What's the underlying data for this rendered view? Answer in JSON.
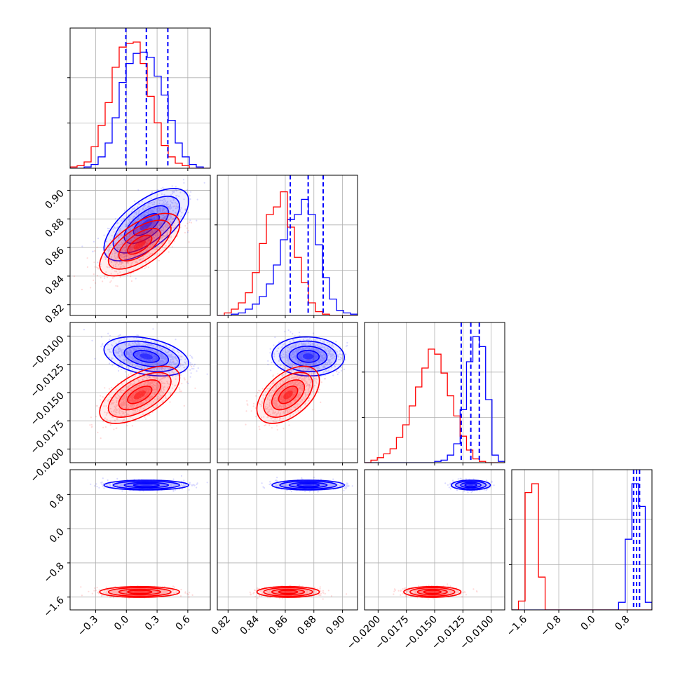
{
  "chart_data": {
    "type": "corner",
    "title": "",
    "grid": true,
    "parameters": [
      {
        "range": [
          -0.55,
          0.82
        ],
        "ticks": [
          -0.3,
          0.0,
          0.3,
          0.6
        ],
        "tick_labels": [
          "−0.3",
          "0.0",
          "0.3",
          "0.6"
        ]
      },
      {
        "range": [
          0.8125,
          0.9105
        ],
        "ticks": [
          0.82,
          0.84,
          0.86,
          0.88,
          0.9
        ],
        "tick_labels": [
          "0.82",
          "0.84",
          "0.86",
          "0.88",
          "0.90"
        ]
      },
      {
        "range": [
          -0.0212,
          -0.0088
        ],
        "ticks": [
          -0.02,
          -0.0175,
          -0.015,
          -0.0125,
          -0.01
        ],
        "tick_labels": [
          "−0.0200",
          "−0.0175",
          "−0.0150",
          "−0.0125",
          "−0.0100"
        ]
      },
      {
        "range": [
          -1.9,
          1.38
        ],
        "ticks": [
          -1.6,
          -0.8,
          0.0,
          0.8
        ],
        "tick_labels": [
          "−1.6",
          "−0.8",
          "0.0",
          "0.8"
        ]
      }
    ],
    "series": [
      {
        "color": "#0000ff",
        "means": [
          0.195,
          0.876,
          -0.0118,
          1.02
        ],
        "sds": [
          0.18,
          0.011,
          0.00075,
          0.05
        ],
        "corr": [
          [
            1,
            0.65,
            -0.35,
            0
          ],
          [
            0.65,
            1,
            -0.05,
            0
          ],
          [
            -0.35,
            -0.05,
            1,
            0
          ],
          [
            0,
            0,
            0,
            1
          ]
        ]
      },
      {
        "color": "#ff0000",
        "means": [
          0.13,
          0.862,
          -0.0152,
          -1.48
        ],
        "sds": [
          0.17,
          0.0095,
          0.0011,
          0.055
        ],
        "corr": [
          [
            1,
            0.65,
            0.6,
            0
          ],
          [
            0.65,
            1,
            0.5,
            0
          ],
          [
            0.6,
            0.5,
            1,
            0
          ],
          [
            0,
            0,
            0,
            1
          ]
        ]
      }
    ],
    "quantile_lines": {
      "color": "#0000ff",
      "values": [
        [
          -0.005,
          0.195,
          0.405
        ],
        [
          0.8635,
          0.876,
          0.8865
        ],
        [
          -0.01265,
          -0.0118,
          -0.01105
        ],
        [
          0.95,
          1.02,
          1.09
        ]
      ]
    },
    "histograms": [
      {
        "blue": [
          0,
          0,
          0.01,
          0.03,
          0.09,
          0.2,
          0.4,
          0.68,
          0.83,
          0.91,
          0.92,
          0.88,
          0.73,
          0.58,
          0.38,
          0.2,
          0.09,
          0.03,
          0.01,
          0
        ],
        "red": [
          0.01,
          0.02,
          0.05,
          0.17,
          0.34,
          0.52,
          0.8,
          0.96,
          0.99,
          1.0,
          0.83,
          0.57,
          0.36,
          0.18,
          0.09,
          0.04,
          0.02,
          0,
          0,
          0
        ]
      },
      {
        "blue": [
          0,
          0,
          0.01,
          0.02,
          0.05,
          0.09,
          0.15,
          0.25,
          0.4,
          0.6,
          0.76,
          0.8,
          0.92,
          0.8,
          0.56,
          0.3,
          0.13,
          0.04,
          0.02,
          0.01
        ],
        "red": [
          0,
          0.02,
          0.05,
          0.1,
          0.18,
          0.34,
          0.57,
          0.8,
          0.86,
          0.98,
          0.7,
          0.46,
          0.26,
          0.1,
          0.03,
          0.01,
          0,
          0,
          0,
          0
        ]
      },
      {
        "blue": [
          0,
          0,
          0,
          0,
          0,
          0,
          0,
          0,
          0,
          0,
          0,
          0.01,
          0.02,
          0.06,
          0.15,
          0.42,
          0.8,
          1.0,
          0.92,
          0.5,
          0.06,
          0.01
        ],
        "red": [
          0,
          0.02,
          0.04,
          0.07,
          0.11,
          0.2,
          0.3,
          0.45,
          0.6,
          0.75,
          0.9,
          0.86,
          0.71,
          0.53,
          0.37,
          0.21,
          0.1,
          0.03,
          0.01,
          0,
          0,
          0
        ]
      },
      {
        "blue": [
          0,
          0,
          0,
          0,
          0,
          0,
          0,
          0,
          0,
          0,
          0,
          0,
          0,
          0,
          0,
          0,
          0.06,
          0.56,
          1.0,
          0.82,
          0.06
        ],
        "red": [
          0,
          0.07,
          0.93,
          1.0,
          0.26,
          0,
          0,
          0,
          0,
          0,
          0,
          0,
          0,
          0,
          0,
          0,
          0,
          0,
          0,
          0,
          0
        ]
      }
    ]
  }
}
